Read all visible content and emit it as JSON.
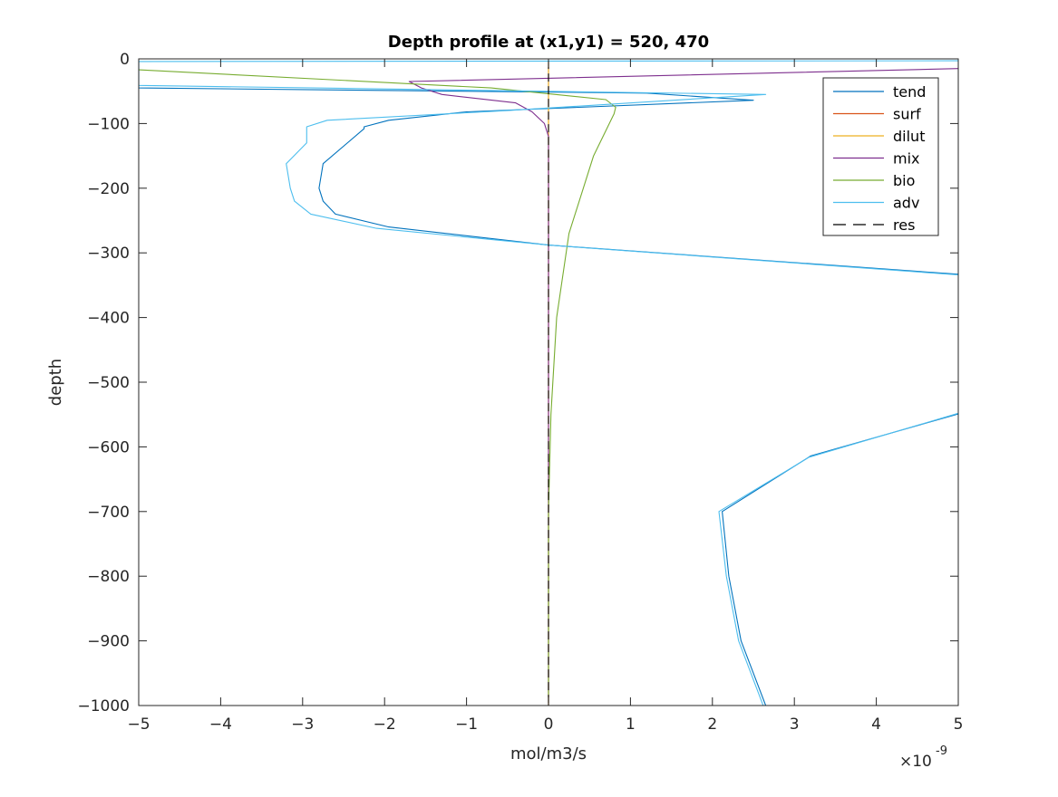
{
  "chart_data": {
    "type": "line",
    "title": "Depth profile at (x1,y1) = 520, 470",
    "xlabel": "mol/m3/s",
    "ylabel": "depth",
    "xlim": [
      -5,
      5
    ],
    "ylim": [
      -1000,
      0
    ],
    "x_exponent_label": "×10",
    "x_exponent_power": "-9",
    "x_ticks": [
      -5,
      -4,
      -3,
      -2,
      -1,
      0,
      1,
      2,
      3,
      4,
      5
    ],
    "x_tick_labels": [
      "−5",
      "−4",
      "−3",
      "−2",
      "−1",
      "0",
      "1",
      "2",
      "3",
      "4",
      "5"
    ],
    "y_ticks": [
      0,
      -100,
      -200,
      -300,
      -400,
      -500,
      -600,
      -700,
      -800,
      -900,
      -1000
    ],
    "y_tick_labels": [
      "0",
      "−100",
      "−200",
      "−300",
      "−400",
      "−500",
      "−600",
      "−700",
      "−800",
      "−900",
      "−1000"
    ],
    "grid": false,
    "legend_position": "top-right",
    "series": [
      {
        "name": "tend",
        "color": "#0072BD",
        "dash": "solid",
        "points": [
          [
            -5,
            -4
          ],
          [
            -5,
            -45
          ],
          [
            1.2,
            -53
          ],
          [
            2.5,
            -64
          ],
          [
            -1,
            -82
          ],
          [
            -1.95,
            -95
          ],
          [
            -2.25,
            -105
          ],
          [
            -2.25,
            -108
          ],
          [
            -2.75,
            -162
          ],
          [
            -2.8,
            -200
          ],
          [
            -2.75,
            -220
          ],
          [
            -2.6,
            -240
          ],
          [
            -1.95,
            -260
          ],
          [
            0,
            -288
          ],
          [
            5,
            -333
          ],
          [
            5.5,
            -340
          ],
          [
            5.5,
            -540
          ],
          [
            5,
            -549
          ],
          [
            3.2,
            -614
          ],
          [
            2.12,
            -700
          ],
          [
            2.2,
            -800
          ],
          [
            2.35,
            -900
          ],
          [
            2.65,
            -1000
          ]
        ]
      },
      {
        "name": "surf",
        "color": "#D95319",
        "dash": "solid",
        "points": [
          [
            0,
            -4
          ],
          [
            0,
            -1000
          ]
        ]
      },
      {
        "name": "dilut",
        "color": "#EDB120",
        "dash": "solid",
        "points": [
          [
            0,
            -4
          ],
          [
            0,
            -1000
          ]
        ]
      },
      {
        "name": "mix",
        "color": "#7E2F8E",
        "dash": "solid",
        "points": [
          [
            5,
            -15
          ],
          [
            -1.7,
            -35
          ],
          [
            -1.55,
            -45
          ],
          [
            -1.3,
            -55
          ],
          [
            -0.4,
            -68
          ],
          [
            -0.2,
            -82
          ],
          [
            -0.05,
            -100
          ],
          [
            0,
            -120
          ],
          [
            0,
            -1000
          ]
        ]
      },
      {
        "name": "bio",
        "color": "#77AC30",
        "dash": "solid",
        "points": [
          [
            -5,
            -17
          ],
          [
            -0.7,
            -45
          ],
          [
            0.7,
            -63
          ],
          [
            0.82,
            -75
          ],
          [
            0.8,
            -85
          ],
          [
            0.55,
            -150
          ],
          [
            0.25,
            -270
          ],
          [
            0.1,
            -400
          ],
          [
            0.03,
            -550
          ],
          [
            0,
            -700
          ],
          [
            0,
            -1000
          ]
        ]
      },
      {
        "name": "adv",
        "color": "#4DBEEE",
        "dash": "solid",
        "points": [
          [
            5,
            -3
          ],
          [
            -5,
            -4
          ],
          [
            -5,
            -41
          ],
          [
            2.65,
            -55
          ],
          [
            -0.5,
            -80
          ],
          [
            -2.7,
            -95
          ],
          [
            -2.95,
            -105
          ],
          [
            -2.95,
            -130
          ],
          [
            -3.2,
            -162
          ],
          [
            -3.15,
            -200
          ],
          [
            -3.1,
            -220
          ],
          [
            -2.9,
            -240
          ],
          [
            -2.1,
            -262
          ],
          [
            0,
            -288
          ],
          [
            5,
            -334
          ],
          [
            5.5,
            -341
          ],
          [
            5.5,
            -539
          ],
          [
            5,
            -548
          ],
          [
            3.18,
            -616
          ],
          [
            2.08,
            -700
          ],
          [
            2.17,
            -800
          ],
          [
            2.32,
            -900
          ],
          [
            2.62,
            -1000
          ]
        ]
      },
      {
        "name": "res",
        "color": "#000000",
        "dash": "dashed",
        "points": [
          [
            0,
            -3
          ],
          [
            0,
            -1000
          ]
        ]
      }
    ]
  }
}
